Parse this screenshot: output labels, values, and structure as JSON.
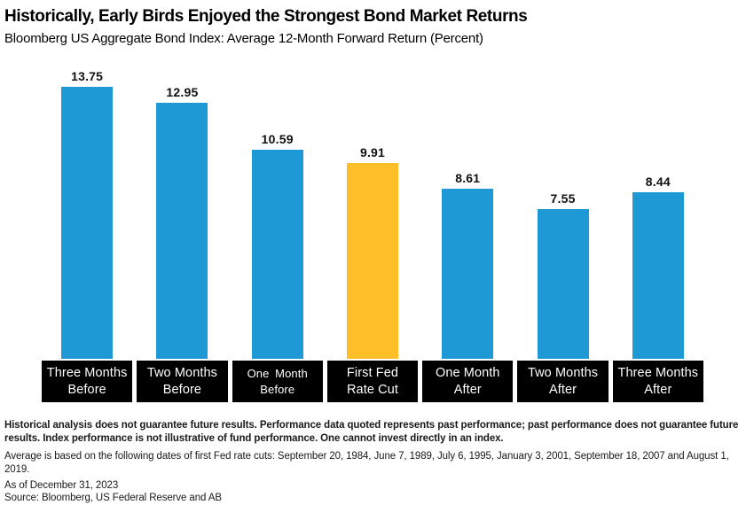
{
  "header": {
    "title": "Historically, Early Birds Enjoyed the Strongest Bond Market Returns",
    "subtitle": "Bloomberg US Aggregate Bond Index: Average 12-Month Forward Return (Percent)"
  },
  "chart_data": {
    "type": "bar",
    "title": "Historically, Early Birds Enjoyed the Strongest Bond Market Returns",
    "subtitle": "Bloomberg US Aggregate Bond Index: Average 12-Month Forward Return (Percent)",
    "categories": [
      {
        "line1": "Three Months",
        "line2": "Before"
      },
      {
        "line1": "Two Months",
        "line2": "Before"
      },
      {
        "line1": "One Month",
        "line2": "Before"
      },
      {
        "line1": "First Fed",
        "line2": "Rate Cut"
      },
      {
        "line1": "One Month",
        "line2": "After"
      },
      {
        "line1": "Two Months",
        "line2": "After"
      },
      {
        "line1": "Three Months",
        "line2": "After"
      }
    ],
    "values": [
      13.75,
      12.95,
      10.59,
      9.91,
      8.61,
      7.55,
      8.44
    ],
    "highlight_index": 3,
    "colors": {
      "bar": "#1F99D6",
      "highlight": "#FDBE27",
      "category_bg": "#000000",
      "category_text": "#FFFFFF"
    },
    "ylim": [
      0,
      15.45
    ],
    "grid": false,
    "legend": false,
    "xlabel": "",
    "ylabel": ""
  },
  "footnotes": {
    "disclaimer_bold": "Historical analysis does not guarantee future results. Performance data quoted represents past performance; past performance does not guarantee future results. Index performance is not illustrative of fund performance. One cannot invest directly in an index.",
    "average_note": "Average is based on the following dates of first Fed rate cuts: September 20, 1984, June 7, 1989, July 6, 1995, January 3, 2001, September 18, 2007 and August 1, 2019.",
    "as_of": "As of December 31, 2023",
    "source": "Source: Bloomberg, US Federal Reserve and AB"
  }
}
